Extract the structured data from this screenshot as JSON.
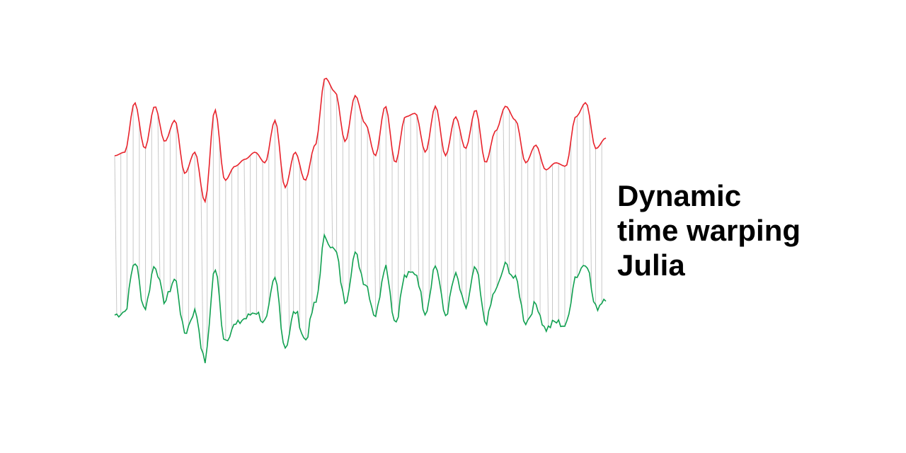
{
  "title": {
    "line1": "Dynamic",
    "line2": "time warping",
    "line3": "Julia"
  },
  "colors": {
    "series_a": "#e8222b",
    "series_b": "#10a050",
    "warp_links": "#c8c8c8",
    "background": "#ffffff",
    "title": "#000000"
  },
  "series_a_peaks": [
    0.0,
    0.05,
    0.75,
    0.1,
    0.7,
    0.2,
    0.5,
    -0.25,
    0.05,
    -0.65,
    0.65,
    -0.35,
    -0.15,
    -0.05,
    0.05,
    -0.1,
    0.5,
    -0.45,
    0.05,
    -0.35,
    0.15,
    1.1,
    0.9,
    0.2,
    0.85,
    0.45,
    0.0,
    0.7,
    -0.1,
    0.55,
    0.6,
    0.05,
    0.7,
    0.0,
    0.55,
    0.1,
    0.65,
    -0.1,
    0.35,
    0.7,
    0.5,
    -0.1,
    0.15,
    -0.2,
    -0.1,
    -0.15,
    0.55,
    0.75,
    0.1,
    0.25
  ],
  "series_b_peaks": [
    0.0,
    0.05,
    0.75,
    0.1,
    0.7,
    0.2,
    0.5,
    -0.25,
    0.05,
    -0.65,
    0.65,
    -0.35,
    -0.15,
    -0.05,
    0.05,
    -0.1,
    0.5,
    -0.45,
    0.05,
    -0.35,
    0.15,
    1.1,
    0.9,
    0.2,
    0.85,
    0.45,
    0.0,
    0.7,
    -0.1,
    0.55,
    0.6,
    0.05,
    0.7,
    0.0,
    0.55,
    0.1,
    0.65,
    -0.1,
    0.35,
    0.7,
    0.5,
    -0.1,
    0.15,
    -0.2,
    -0.1,
    -0.15,
    0.55,
    0.75,
    0.1,
    0.25
  ]
}
